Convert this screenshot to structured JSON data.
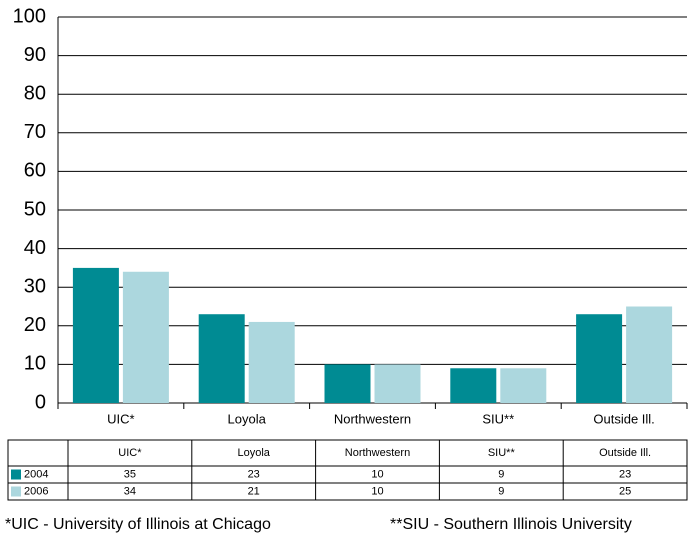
{
  "chart_data": {
    "type": "bar",
    "categories": [
      "UIC*",
      "Loyola",
      "Northwestern",
      "SIU**",
      "Outside Ill."
    ],
    "series": [
      {
        "name": "2004",
        "color": "#008b93",
        "values": [
          35,
          23,
          10,
          9,
          23
        ]
      },
      {
        "name": "2006",
        "color": "#acd7de",
        "values": [
          34,
          21,
          10,
          9,
          25
        ]
      }
    ],
    "ylim": [
      0,
      100
    ],
    "yticks": [
      0,
      10,
      20,
      30,
      40,
      50,
      60,
      70,
      80,
      90,
      100
    ],
    "grid": true,
    "footnotes": [
      "*UIC - University of Illinois at Chicago",
      "**SIU - Southern Illinois University"
    ]
  }
}
